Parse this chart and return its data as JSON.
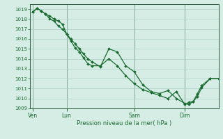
{
  "xlabel": "Pression niveau de la mer( hPa )",
  "bg_color": "#d6ede6",
  "grid_color": "#afd0c5",
  "line_color": "#1a6b30",
  "marker_color": "#1a6b30",
  "ylim": [
    1009,
    1019.5
  ],
  "yticks": [
    1009,
    1010,
    1011,
    1012,
    1013,
    1014,
    1015,
    1016,
    1017,
    1018,
    1019
  ],
  "vline_labels": [
    "Ven",
    "Lun",
    "Sam",
    "Dim"
  ],
  "vline_x": [
    0,
    24,
    72,
    108
  ],
  "xlim": [
    -2,
    132
  ],
  "series1_x": [
    0,
    3,
    6,
    9,
    12,
    15,
    18,
    21,
    24,
    27,
    30,
    33,
    36,
    39,
    42,
    48,
    54,
    60,
    66,
    72,
    78,
    84,
    90,
    96,
    102,
    108,
    111,
    114,
    117,
    120,
    126,
    132
  ],
  "series1_y": [
    1018.7,
    1019.1,
    1018.8,
    1018.5,
    1018.0,
    1017.8,
    1017.3,
    1017.0,
    1016.5,
    1016.0,
    1015.5,
    1015.0,
    1014.5,
    1014.0,
    1013.7,
    1013.2,
    1015.0,
    1014.7,
    1013.3,
    1012.7,
    1011.4,
    1010.7,
    1010.5,
    1010.8,
    1010.0,
    1009.5,
    1009.4,
    1009.7,
    1010.5,
    1011.3,
    1012.0,
    1012.0
  ],
  "series2_x": [
    0,
    3,
    6,
    9,
    12,
    15,
    18,
    21,
    24,
    27,
    30,
    33,
    36,
    39,
    42,
    48,
    54,
    60,
    66,
    72,
    78,
    84,
    90,
    96,
    102,
    108,
    111,
    114,
    117,
    120,
    126,
    132
  ],
  "series2_y": [
    1018.7,
    1019.1,
    1018.8,
    1018.5,
    1018.3,
    1018.0,
    1017.8,
    1017.5,
    1016.5,
    1015.8,
    1015.1,
    1014.7,
    1014.1,
    1013.5,
    1013.3,
    1013.3,
    1014.0,
    1013.3,
    1012.3,
    1011.5,
    1010.9,
    1010.6,
    1010.3,
    1010.0,
    1010.7,
    1009.4,
    1009.6,
    1009.7,
    1010.2,
    1011.1,
    1012.0,
    1012.0
  ]
}
